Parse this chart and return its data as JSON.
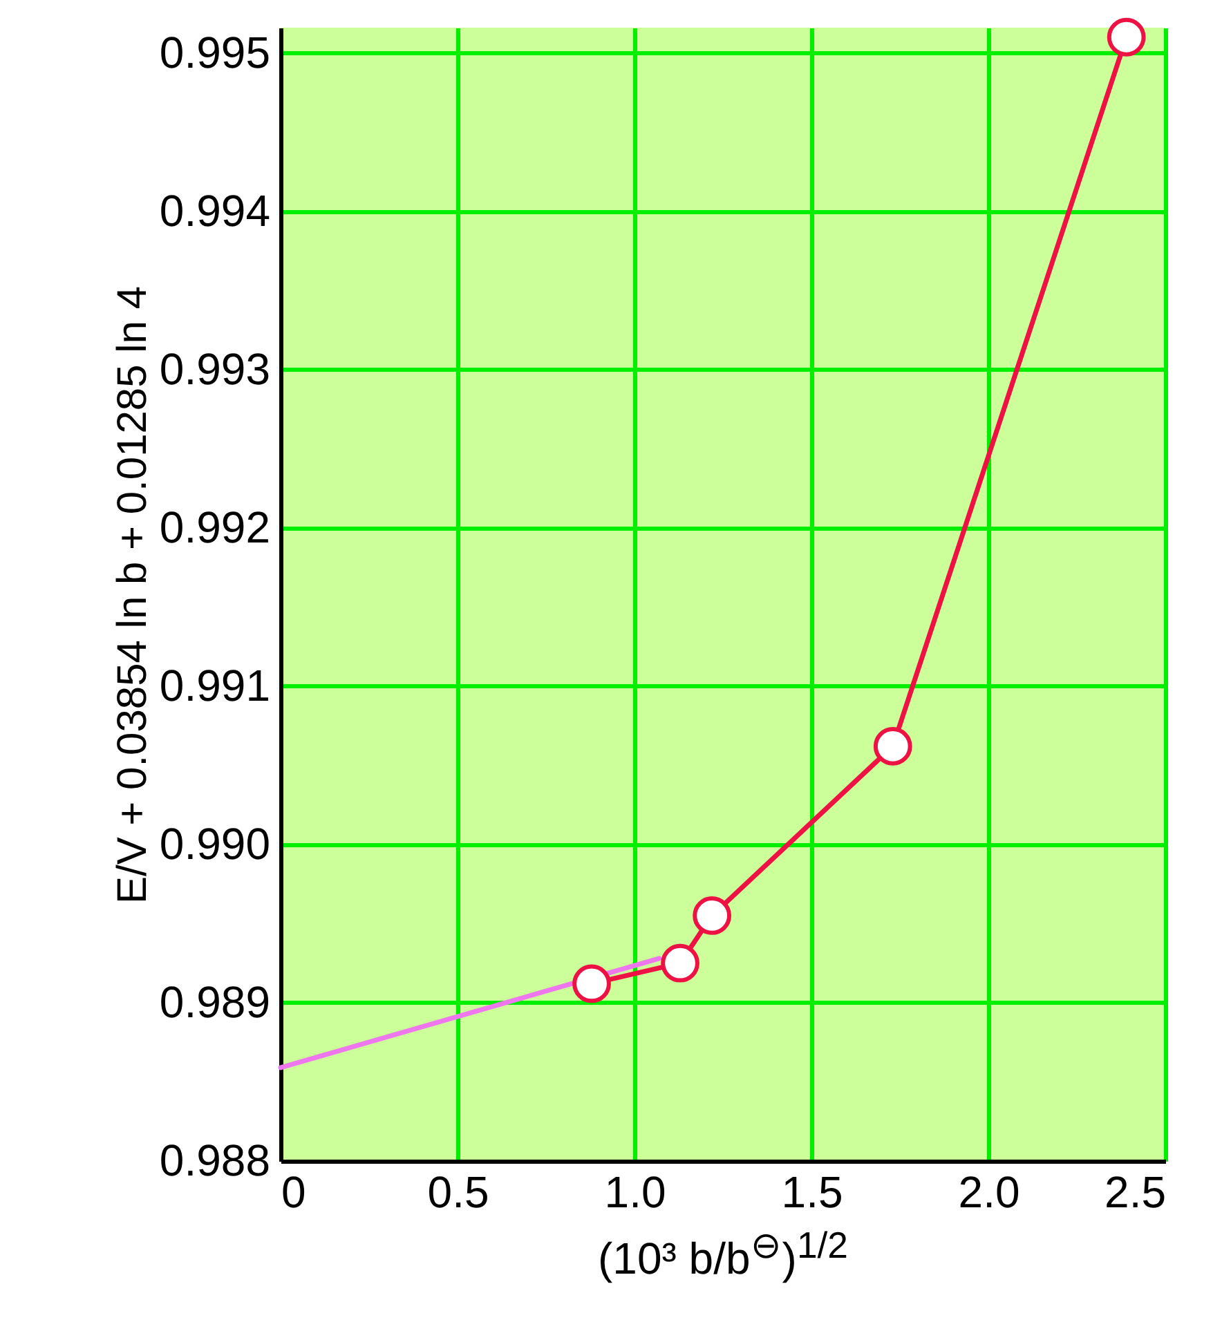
{
  "chart_data": {
    "type": "line",
    "xlabel": "(10³ b/b$^{⊖}$)$^{1/2}$",
    "ylabel": "E/V + 0.03854 ln b + 0.01285 ln 4",
    "xlim": [
      0,
      2.5
    ],
    "ylim": [
      0.988,
      0.99516
    ],
    "xticks": [
      0,
      {
        "value": 0.5,
        "label": "0.5"
      },
      {
        "value": 1,
        "label": "1.0"
      },
      {
        "value": 1.5,
        "label": "1.5"
      },
      {
        "value": 2,
        "label": "2.0"
      },
      {
        "value": 2.5,
        "label": "2.5"
      }
    ],
    "yticks": [
      {
        "value": 0.988,
        "label": "0.988"
      },
      {
        "value": 0.989,
        "label": "0.989"
      },
      {
        "value": 0.99,
        "label": "0.990"
      },
      {
        "value": 0.991,
        "label": "0.991"
      },
      {
        "value": 0.992,
        "label": "0.992"
      },
      {
        "value": 0.993,
        "label": "0.993"
      },
      {
        "value": 0.994,
        "label": "0.994"
      },
      {
        "value": 0.995,
        "label": "0.995"
      }
    ],
    "grid": true,
    "marker": "circle",
    "line_style": "solid",
    "series": [
      {
        "type": "line",
        "marker": "none",
        "color": "#ee77ee",
        "x": [
          0,
          1.07
        ],
        "values": [
          0.98859,
          0.98928
        ]
      },
      {
        "color": "#ee1144",
        "x": [
          0.879,
          1.129,
          1.219,
          1.73,
          2.39
        ],
        "values": [
          0.98912,
          0.98925,
          0.98955,
          0.99062,
          0.9951
        ]
      }
    ]
  }
}
